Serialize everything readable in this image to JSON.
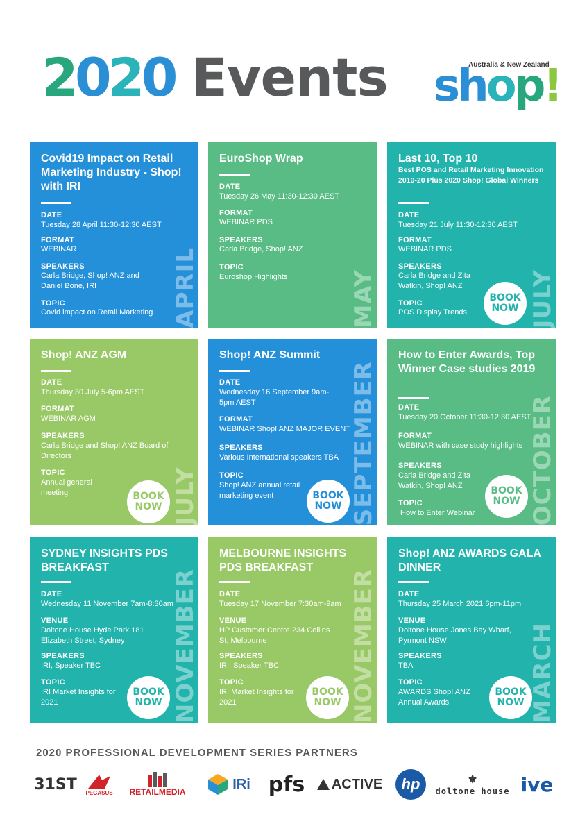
{
  "header": {
    "year_digits": [
      "2",
      "0",
      "2",
      "0"
    ],
    "word": "Events"
  },
  "logo": {
    "subtitle": "Australia & New Zealand",
    "letters": [
      "sh",
      "o",
      "p",
      "!"
    ]
  },
  "labels": {
    "date": "DATE",
    "format": "FORMAT",
    "speakers": "SPEAKERS",
    "topic": "TOPIC",
    "venue": "VENUE",
    "book_1": "BOOK",
    "book_2": "NOW"
  },
  "events": [
    {
      "title": "Covid19 Impact on Retail Marketing Industry - Shop! with IRI",
      "date": "Tuesday 28 April 11:30-12:30 AEST",
      "format": "WEBINAR",
      "speakers": "Carla Bridge, Shop! ANZ and Daniel Bone, IRI",
      "topic": "Covid impact on Retail Marketing",
      "month": "APRIL"
    },
    {
      "title": "EuroShop Wrap",
      "date": "Tuesday 26 May 11:30-12:30 AEST",
      "format": "WEBINAR PDS",
      "speakers": "Carla Bridge, Shop! ANZ",
      "topic": "Euroshop Highlights",
      "month": "MAY"
    },
    {
      "title": "Last 10, Top 10",
      "subtitle": "Best POS and Retail Marketing Innovation 2010-20 Plus 2020 Shop! Global Winners",
      "date": "Tuesday 21 July 11:30-12:30 AEST",
      "format": "WEBINAR PDS",
      "speakers": "Carla Bridge and Zita Watkin, Shop! ANZ",
      "topic": "POS Display Trends",
      "month": "JULY"
    },
    {
      "title": "Shop! ANZ AGM",
      "date": "Thursday 30 July 5-6pm AEST",
      "format": "WEBINAR AGM",
      "speakers": "Carla Bridge and Shop! ANZ Board of Directors",
      "topic": "Annual general meeting",
      "month": "JULY"
    },
    {
      "title": "Shop! ANZ Summit",
      "date": "Wednesday 16 September 9am-5pm AEST",
      "format": "WEBINAR Shop! ANZ MAJOR EVENT",
      "speakers": "Various International speakers TBA",
      "topic": "Shop! ANZ annual retail marketing event",
      "month": "SEPTEMBER"
    },
    {
      "title": "How to Enter Awards, Top Winner Case studies 2019",
      "date": "Tuesday 20 October 11:30-12:30 AEST",
      "format": "WEBINAR with case study highlights",
      "speakers": "Carla Bridge and Zita Watkin, Shop! ANZ",
      "topic": "How to Enter Webinar",
      "month": "OCTOBER"
    },
    {
      "title": "SYDNEY INSIGHTS PDS BREAKFAST",
      "date": "Wednesday 11 November 7am-8:30am",
      "venue": "Doltone House Hyde Park 181 Elizabeth Street, Sydney",
      "speakers": "IRI, Speaker TBC",
      "topic": "IRI Market Insights for 2021",
      "month": "NOVEMBER"
    },
    {
      "title": "MELBOURNE INSIGHTS PDS BREAKFAST",
      "date": "Tuesday 17 November 7:30am-9am",
      "venue": "HP Customer Centre 234 Collins St, Melbourne",
      "speakers": "IRI, Speaker TBC",
      "topic": "IRI Market Insights for 2021",
      "month": "NOVEMBER"
    },
    {
      "title": "Shop! ANZ AWARDS GALA DINNER",
      "date": "Thursday 25 March 2021 6pm-11pm",
      "venue": "Doltone House Jones Bay Wharf, Pyrmont NSW",
      "speakers": "TBA",
      "topic": "AWARDS Shop! ANZ Annual Awards",
      "month": "MARCH"
    }
  ],
  "footer": {
    "title": "2020 PROFESSIONAL DEVELOPMENT SERIES PARTNERS",
    "partners": [
      "31ST",
      "PEGASUS",
      "RETAILMEDIA",
      "IRi",
      "pfs",
      "ACTIVE",
      "hp",
      "doltone house",
      "ive"
    ]
  },
  "colors": {
    "blue": "#2590da",
    "green": "#58bc84",
    "teal": "#22b3ad",
    "lime": "#99c966",
    "grey": "#58595b"
  }
}
